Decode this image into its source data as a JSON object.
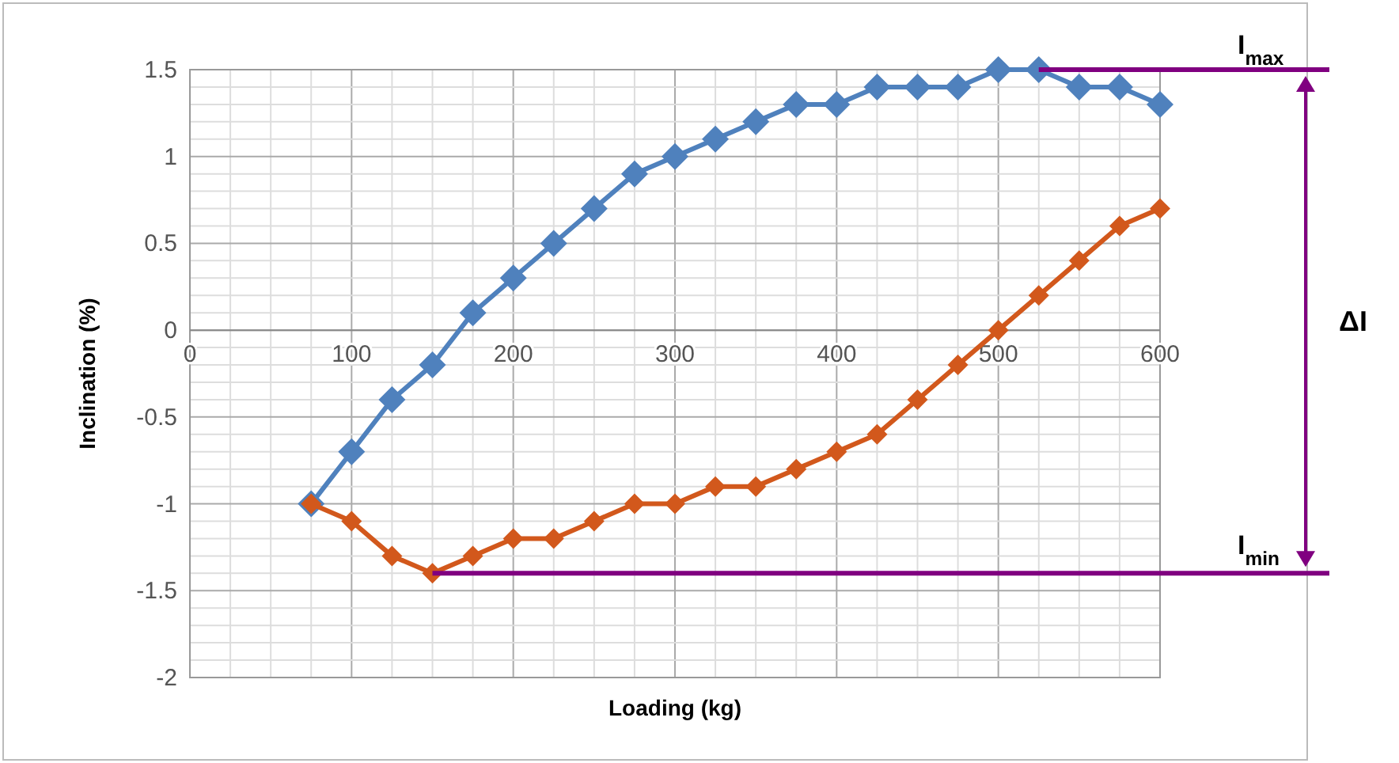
{
  "chart_data": {
    "type": "line",
    "xlabel": "Loading (kg)",
    "ylabel": "Inclination (%)",
    "x": [
      75,
      100,
      125,
      150,
      175,
      200,
      225,
      250,
      275,
      300,
      325,
      350,
      375,
      400,
      425,
      450,
      475,
      500,
      525,
      550,
      575,
      600
    ],
    "series": [
      {
        "color": "#4f81bd",
        "values": [
          -1,
          -0.7,
          -0.4,
          -0.2,
          0.1,
          0.3,
          0.5,
          0.7,
          0.9,
          1.0,
          1.1,
          1.2,
          1.3,
          1.3,
          1.4,
          1.4,
          1.4,
          1.5,
          1.5,
          1.4,
          1.4,
          1.3
        ]
      },
      {
        "color": "#d2581c",
        "values": [
          -1,
          -1.1,
          -1.3,
          -1.4,
          -1.3,
          -1.2,
          -1.2,
          -1.1,
          -1.0,
          -1.0,
          -0.9,
          -0.9,
          -0.8,
          -0.7,
          -0.6,
          -0.4,
          -0.2,
          0,
          0.2,
          0.4,
          0.6,
          0.7
        ]
      }
    ],
    "xlim": [
      0,
      600
    ],
    "ylim": [
      -2,
      1.5
    ],
    "xticks": [
      0,
      {
        "value": 25,
        "label": null
      },
      {
        "value": 50,
        "label": null
      },
      {
        "value": 75,
        "label": null
      },
      100,
      {
        "value": 125,
        "label": null
      },
      {
        "value": 150,
        "label": null
      },
      {
        "value": 175,
        "label": null
      },
      200,
      {
        "value": 225,
        "label": null
      },
      {
        "value": 250,
        "label": null
      },
      {
        "value": 275,
        "label": null
      },
      300,
      {
        "value": 325,
        "label": null
      },
      {
        "value": 350,
        "label": null
      },
      {
        "value": 375,
        "label": null
      },
      400,
      {
        "value": 425,
        "label": null
      },
      {
        "value": 450,
        "label": null
      },
      {
        "value": 475,
        "label": null
      },
      500,
      {
        "value": 525,
        "label": null
      },
      {
        "value": 550,
        "label": null
      },
      {
        "value": 575,
        "label": null
      },
      600
    ],
    "yticks": [
      -2,
      {
        "value": -1.9,
        "label": null
      },
      {
        "value": -1.8,
        "label": null
      },
      {
        "value": -1.7,
        "label": null
      },
      {
        "value": -1.6,
        "label": null
      },
      -1.5,
      {
        "value": -1.4,
        "label": null
      },
      {
        "value": -1.3,
        "label": null
      },
      {
        "value": -1.2,
        "label": null
      },
      {
        "value": -1.1,
        "label": null
      },
      -1,
      {
        "value": -0.9,
        "label": null
      },
      {
        "value": -0.8,
        "label": null
      },
      {
        "value": -0.7,
        "label": null
      },
      {
        "value": -0.6,
        "label": null
      },
      -0.5,
      {
        "value": -0.4,
        "label": null
      },
      {
        "value": -0.3,
        "label": null
      },
      {
        "value": -0.2,
        "label": null
      },
      {
        "value": -0.1,
        "label": null
      },
      0,
      {
        "value": 0.1,
        "label": null
      },
      {
        "value": 0.2,
        "label": null
      },
      {
        "value": 0.3,
        "label": null
      },
      {
        "value": 0.4,
        "label": null
      },
      0.5,
      {
        "value": 0.6,
        "label": null
      },
      {
        "value": 0.7,
        "label": null
      },
      {
        "value": 0.8,
        "label": null
      },
      {
        "value": 0.9,
        "label": null
      },
      1,
      {
        "value": 1.1,
        "label": null
      },
      {
        "value": 1.2,
        "label": null
      },
      {
        "value": 1.3,
        "label": null
      },
      {
        "value": 1.4,
        "label": null
      },
      1.5
    ],
    "grid": true,
    "marker": "diamond",
    "line_style": "solid",
    "ref_lines": [
      {
        "axis": "y",
        "value": 1.5,
        "label": "I$_{max}$",
        "color": "#800080"
      },
      {
        "axis": "y",
        "value": -1.4,
        "label": "I$_{min}$",
        "color": "#800080"
      }
    ],
    "annotations": [
      "ΔI"
    ]
  }
}
